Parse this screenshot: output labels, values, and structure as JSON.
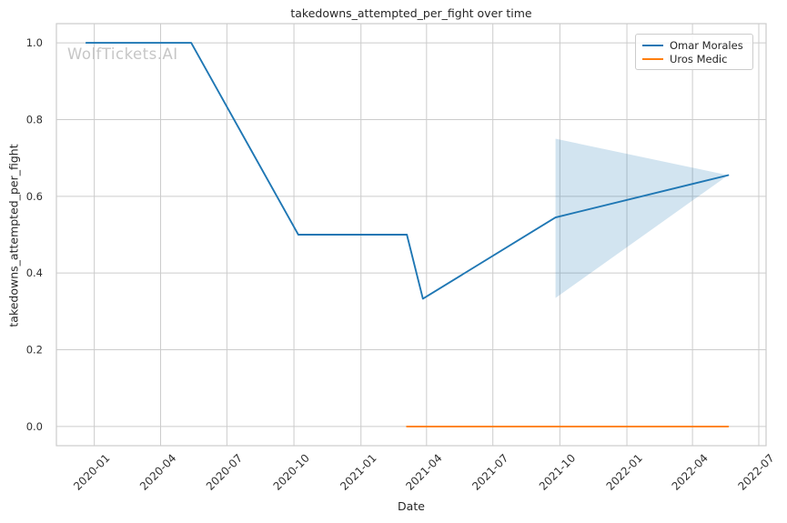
{
  "watermark": {
    "text": "WolfTickets.AI",
    "color": "#c6c6c6"
  },
  "colors": {
    "grid": "#cccccc",
    "spine": "#cccccc",
    "tick_text": "#303030",
    "title_text": "#262626",
    "series_blue": "#1f77b4",
    "series_orange": "#ff7f0e"
  },
  "chart_data": {
    "type": "line",
    "title": "takedowns_attempted_per_fight over time",
    "xlabel": "Date",
    "ylabel": "takedowns_attempted_per_fight",
    "grid": true,
    "legend_position": "upper-right",
    "xlim": [
      "2019-11-10",
      "2022-07-11"
    ],
    "ylim": [
      -0.05,
      1.05
    ],
    "x_ticks": [
      "2020-01",
      "2020-04",
      "2020-07",
      "2020-10",
      "2021-01",
      "2021-04",
      "2021-07",
      "2021-10",
      "2022-01",
      "2022-04",
      "2022-07"
    ],
    "y_ticks": [
      0.0,
      0.2,
      0.4,
      0.6,
      0.8,
      1.0
    ],
    "y_tick_labels": [
      "0.0",
      "0.2",
      "0.4",
      "0.6",
      "0.8",
      "1.0"
    ],
    "series": [
      {
        "name": "Omar Morales",
        "color": "#1f77b4",
        "x": [
          "2019-12-21",
          "2020-05-13",
          "2020-10-07",
          "2021-03-05",
          "2021-03-27",
          "2021-09-25",
          "2022-05-20"
        ],
        "y": [
          1.0,
          1.0,
          0.5,
          0.5,
          0.333,
          0.545,
          0.655
        ],
        "confidence_band": {
          "x": [
            "2021-09-25",
            "2022-05-20"
          ],
          "upper": [
            0.75,
            0.655
          ],
          "lower": [
            0.335,
            0.655
          ],
          "fill_opacity": 0.2
        }
      },
      {
        "name": "Uros Medic",
        "color": "#ff7f0e",
        "x": [
          "2021-03-05",
          "2022-05-20"
        ],
        "y": [
          0.0,
          0.0
        ]
      }
    ]
  }
}
